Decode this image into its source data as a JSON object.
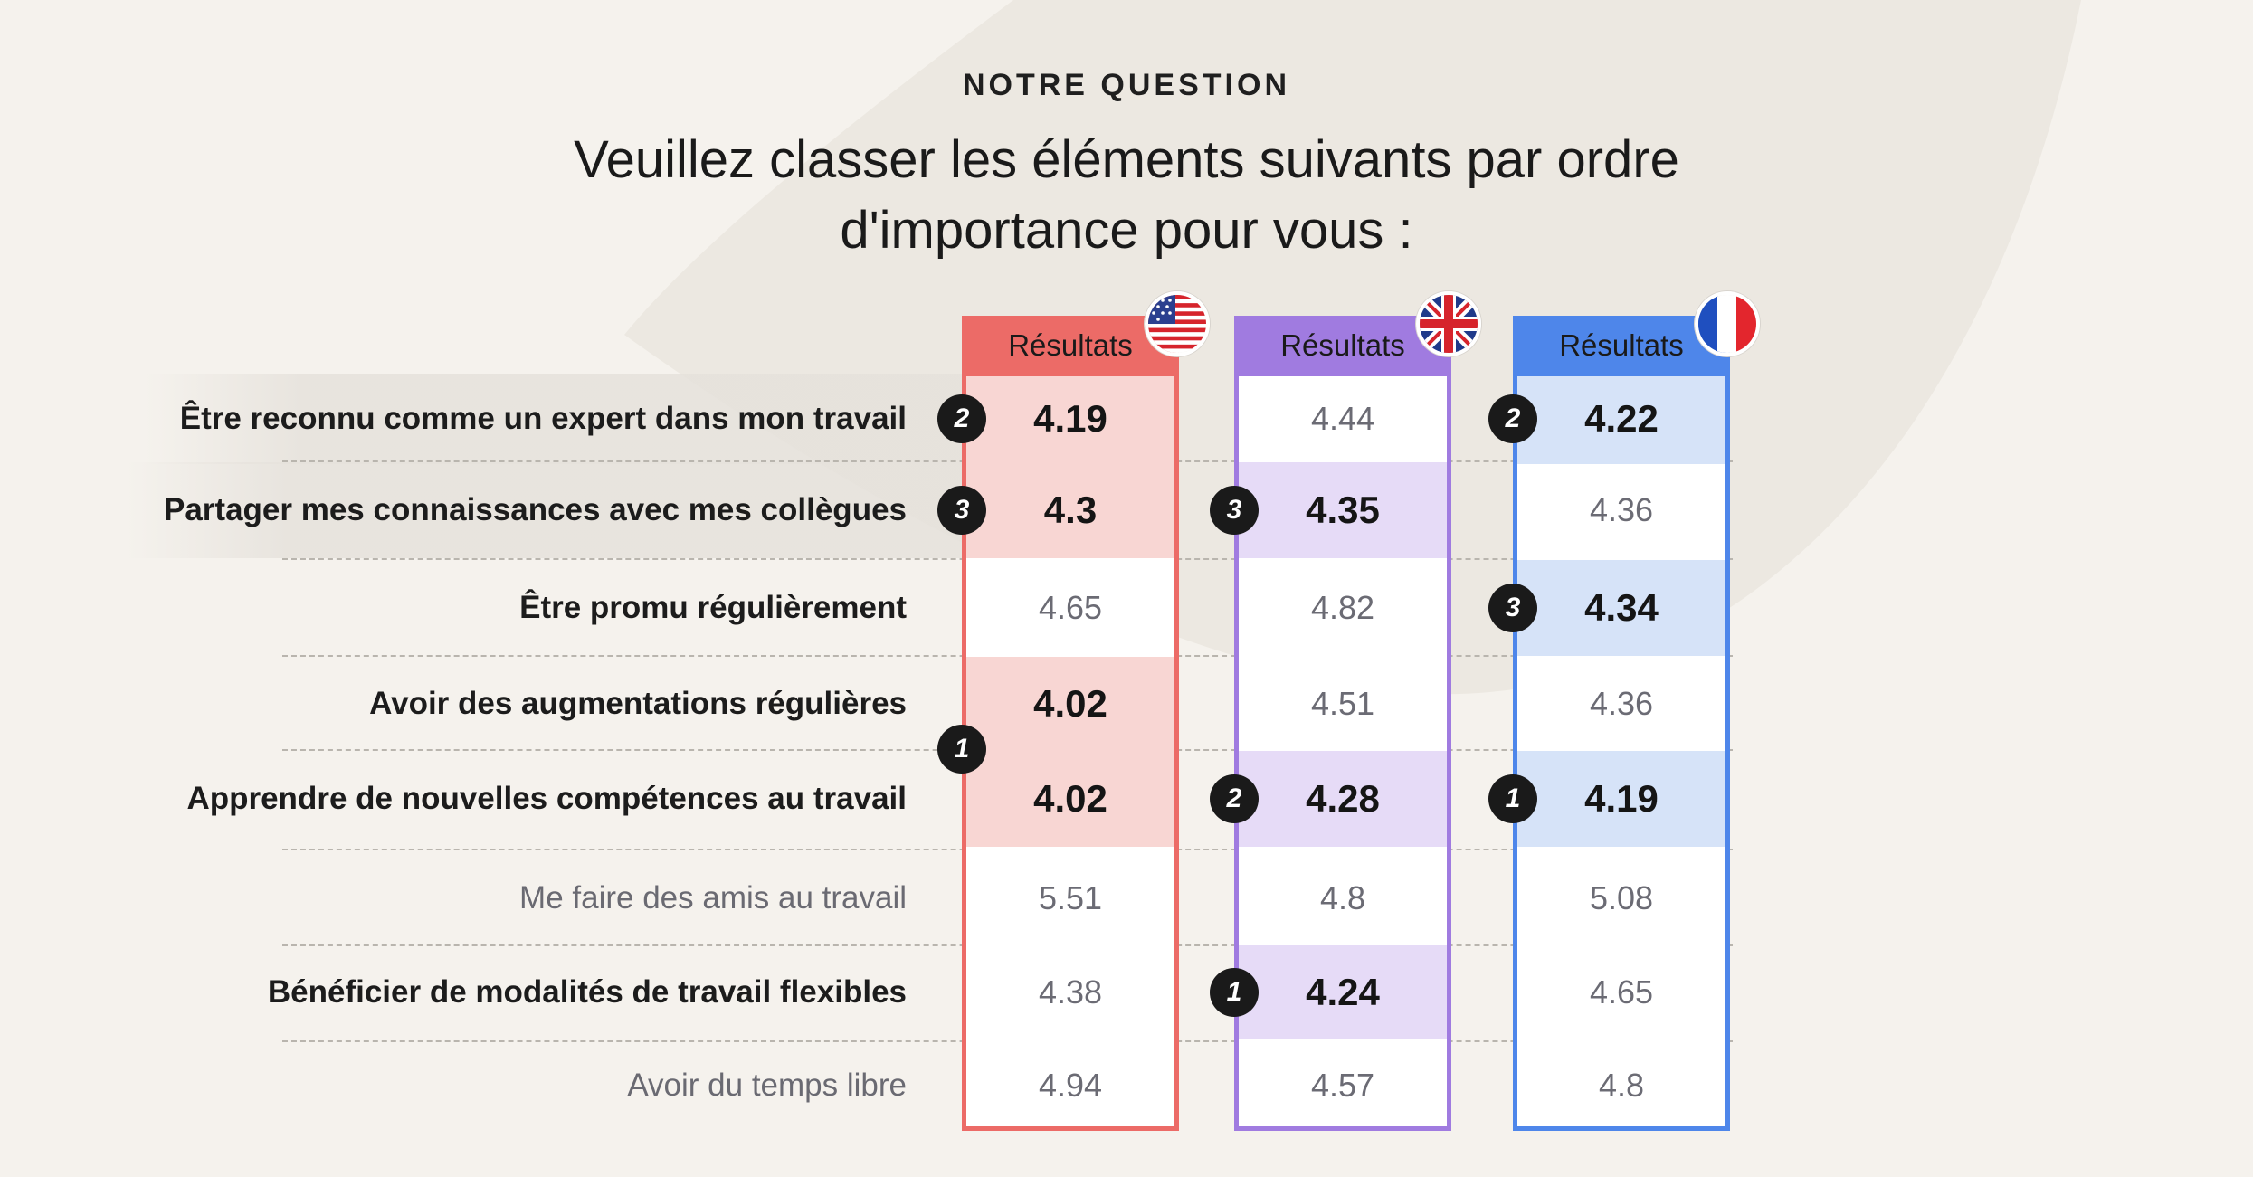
{
  "header": {
    "eyebrow": "NOTRE QUESTION",
    "title_line1": "Veuillez classer les éléments suivants par ordre",
    "title_line2": "d'importance pour vous :"
  },
  "chart_data": {
    "type": "table",
    "columns": [
      {
        "header": "Résultats",
        "flag": "us-flag-icon",
        "color": "#ec6b67",
        "fill": "#f8d6d3"
      },
      {
        "header": "Résultats",
        "flag": "uk-flag-icon",
        "color": "#a07be0",
        "fill": "#e6dbf7"
      },
      {
        "header": "Résultats",
        "flag": "france-flag-icon",
        "color": "#4e86ea",
        "fill": "#d6e3f8"
      }
    ],
    "rows": [
      {
        "label": "Être reconnu comme un expert dans mon travail",
        "values": [
          "4.19",
          "4.44",
          "4.22"
        ],
        "highlight": [
          true,
          false,
          true
        ],
        "ranks": [
          "2",
          "",
          "2"
        ],
        "bold": true,
        "shaded": true
      },
      {
        "label": "Partager mes connaissances avec mes collègues",
        "values": [
          "4.3",
          "4.35",
          "4.36"
        ],
        "highlight": [
          true,
          true,
          false
        ],
        "ranks": [
          "3",
          "3",
          ""
        ],
        "bold": true,
        "shaded": true
      },
      {
        "label": "Être promu régulièrement",
        "values": [
          "4.65",
          "4.82",
          "4.34"
        ],
        "highlight": [
          false,
          false,
          true
        ],
        "ranks": [
          "",
          "",
          "3"
        ],
        "bold": true,
        "shaded": false
      },
      {
        "label": "Avoir des augmentations régulières",
        "values": [
          "4.02",
          "4.51",
          "4.36"
        ],
        "highlight": [
          true,
          false,
          false
        ],
        "ranks": [
          "",
          "",
          ""
        ],
        "bold": true,
        "shaded": false
      },
      {
        "label": "Apprendre de nouvelles compétences au travail",
        "values": [
          "4.02",
          "4.28",
          "4.19"
        ],
        "highlight": [
          true,
          true,
          true
        ],
        "ranks": [
          "",
          "2",
          "1"
        ],
        "bold": true,
        "shaded": false
      },
      {
        "label": "Me faire des amis au travail",
        "values": [
          "5.51",
          "4.8",
          "5.08"
        ],
        "highlight": [
          false,
          false,
          false
        ],
        "ranks": [
          "",
          "",
          ""
        ],
        "bold": false,
        "shaded": false
      },
      {
        "label": "Bénéficier de modalités de travail flexibles",
        "values": [
          "4.38",
          "4.24",
          "4.65"
        ],
        "highlight": [
          false,
          true,
          false
        ],
        "ranks": [
          "",
          "1",
          ""
        ],
        "bold": true,
        "shaded": false
      },
      {
        "label": "Avoir du temps libre",
        "values": [
          "4.94",
          "4.57",
          "4.8"
        ],
        "highlight": [
          false,
          false,
          false
        ],
        "ranks": [
          "",
          "",
          ""
        ],
        "bold": false,
        "shaded": false
      }
    ],
    "shared_ranks": [
      {
        "column": 0,
        "rows": [
          3,
          4
        ],
        "rank": "1"
      }
    ]
  }
}
